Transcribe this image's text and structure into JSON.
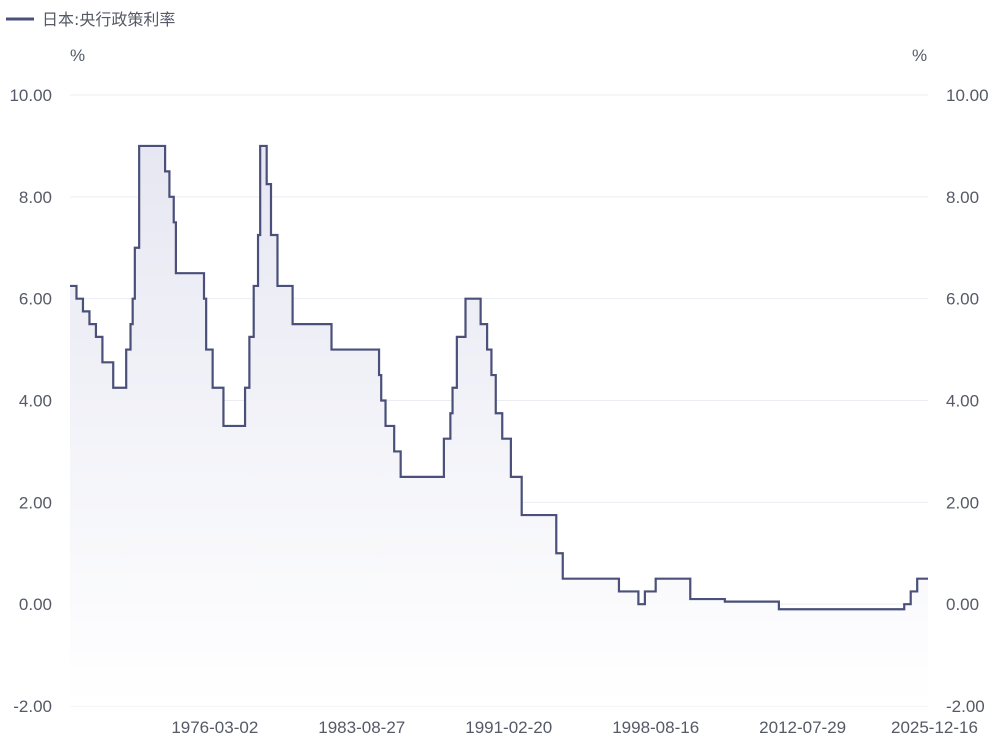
{
  "chart_data": {
    "type": "area",
    "legend": {
      "label": "日本:央行政策利率",
      "placement": "top-left"
    },
    "y_unit_left": "%",
    "y_unit_right": "%",
    "ylim": [
      -2,
      10
    ],
    "y_ticks": [
      "-2.00",
      "0.00",
      "2.00",
      "4.00",
      "6.00",
      "8.00",
      "10.00"
    ],
    "y_tick_values": [
      -2,
      0,
      2,
      4,
      6,
      8,
      10
    ],
    "x_tick_labels": [
      "1976-03-02",
      "1983-08-27",
      "1991-02-20",
      "1998-08-16",
      "2012-07-29",
      "2025-12-16"
    ],
    "x_tick_indices": [
      67,
      135,
      203,
      271,
      339,
      400
    ],
    "grid": true,
    "colors": {
      "line": "#4a5079",
      "fill_top": "#e6e7f2",
      "fill_bottom": "#ffffff",
      "grid": "#ebedf2"
    },
    "series": [
      {
        "name": "日本:央行政策利率",
        "steps": [
          [
            0,
            6.25
          ],
          [
            3,
            6.0
          ],
          [
            6,
            5.75
          ],
          [
            9,
            5.5
          ],
          [
            12,
            5.25
          ],
          [
            15,
            4.75
          ],
          [
            20,
            4.25
          ],
          [
            26,
            5.0
          ],
          [
            28,
            5.5
          ],
          [
            29,
            6.0
          ],
          [
            30,
            7.0
          ],
          [
            32,
            9.0
          ],
          [
            44,
            8.5
          ],
          [
            46,
            8.0
          ],
          [
            48,
            7.5
          ],
          [
            49,
            6.5
          ],
          [
            62,
            6.0
          ],
          [
            63,
            5.0
          ],
          [
            66,
            4.25
          ],
          [
            71,
            3.5
          ],
          [
            81,
            4.25
          ],
          [
            83,
            5.25
          ],
          [
            85,
            6.25
          ],
          [
            87,
            7.25
          ],
          [
            88,
            9.0
          ],
          [
            91,
            8.25
          ],
          [
            93,
            7.25
          ],
          [
            96,
            6.25
          ],
          [
            103,
            5.5
          ],
          [
            121,
            5.0
          ],
          [
            143,
            4.5
          ],
          [
            144,
            4.0
          ],
          [
            146,
            3.5
          ],
          [
            150,
            3.0
          ],
          [
            153,
            2.5
          ],
          [
            173,
            3.25
          ],
          [
            176,
            3.75
          ],
          [
            177,
            4.25
          ],
          [
            179,
            5.25
          ],
          [
            183,
            6.0
          ],
          [
            190,
            5.5
          ],
          [
            193,
            5.0
          ],
          [
            195,
            4.5
          ],
          [
            197,
            3.75
          ],
          [
            200,
            3.25
          ],
          [
            204,
            2.5
          ],
          [
            209,
            1.75
          ],
          [
            225,
            1.0
          ],
          [
            228,
            0.5
          ],
          [
            254,
            0.25
          ],
          [
            263,
            0.0
          ],
          [
            266,
            0.25
          ],
          [
            271,
            0.5
          ],
          [
            287,
            0.1
          ],
          [
            303,
            0.05
          ],
          [
            328,
            -0.1
          ],
          [
            386,
            0.0
          ],
          [
            389,
            0.25
          ],
          [
            392,
            0.5
          ],
          [
            397,
            0.5
          ]
        ]
      }
    ]
  }
}
